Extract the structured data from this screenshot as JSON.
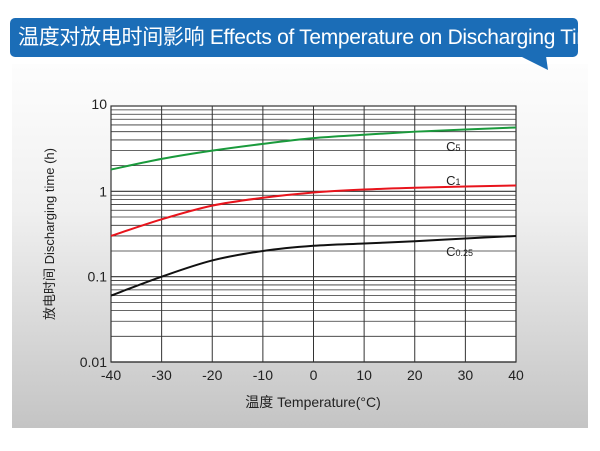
{
  "header": {
    "title": "温度对放电时间影响 Effects of Temperature on Discharging Time"
  },
  "chart_data": {
    "type": "line",
    "title": "温度对放电时间影响 Effects of Temperature on Discharging Time",
    "xlabel": "温度  Temperature(°C)",
    "ylabel": "放电时间 Discharging time (h)",
    "xlim": [
      -40,
      40
    ],
    "ylim": [
      0.01,
      10
    ],
    "yscale": "log",
    "grid": true,
    "x": [
      -40,
      -30,
      -20,
      -10,
      0,
      10,
      20,
      30,
      40
    ],
    "xticks": [
      "-40",
      "-30",
      "-20",
      "-10",
      "0",
      "10",
      "20",
      "30",
      "40"
    ],
    "yticks": [
      {
        "v": 10,
        "label": "10"
      },
      {
        "v": 1,
        "label": "1"
      },
      {
        "v": 0.1,
        "label": "0.1"
      },
      {
        "v": 0.01,
        "label": "0.01"
      }
    ],
    "series": [
      {
        "name": "C5",
        "base": "C",
        "sub": "5",
        "color": "#1a9a3c",
        "values": [
          1.8,
          2.4,
          3.0,
          3.6,
          4.2,
          4.6,
          5.0,
          5.3,
          5.6
        ],
        "label_at": [
          25,
          3.4
        ]
      },
      {
        "name": "C1",
        "base": "C",
        "sub": "1",
        "color": "#e8141c",
        "values": [
          0.3,
          0.47,
          0.68,
          0.84,
          0.97,
          1.05,
          1.1,
          1.14,
          1.17
        ],
        "label_at": [
          25,
          1.35
        ]
      },
      {
        "name": "C0.25",
        "base": "C",
        "sub": "0.25",
        "color": "#111111",
        "values": [
          0.06,
          0.1,
          0.155,
          0.2,
          0.23,
          0.245,
          0.26,
          0.28,
          0.3
        ],
        "label_at": [
          25,
          0.2
        ]
      }
    ]
  }
}
